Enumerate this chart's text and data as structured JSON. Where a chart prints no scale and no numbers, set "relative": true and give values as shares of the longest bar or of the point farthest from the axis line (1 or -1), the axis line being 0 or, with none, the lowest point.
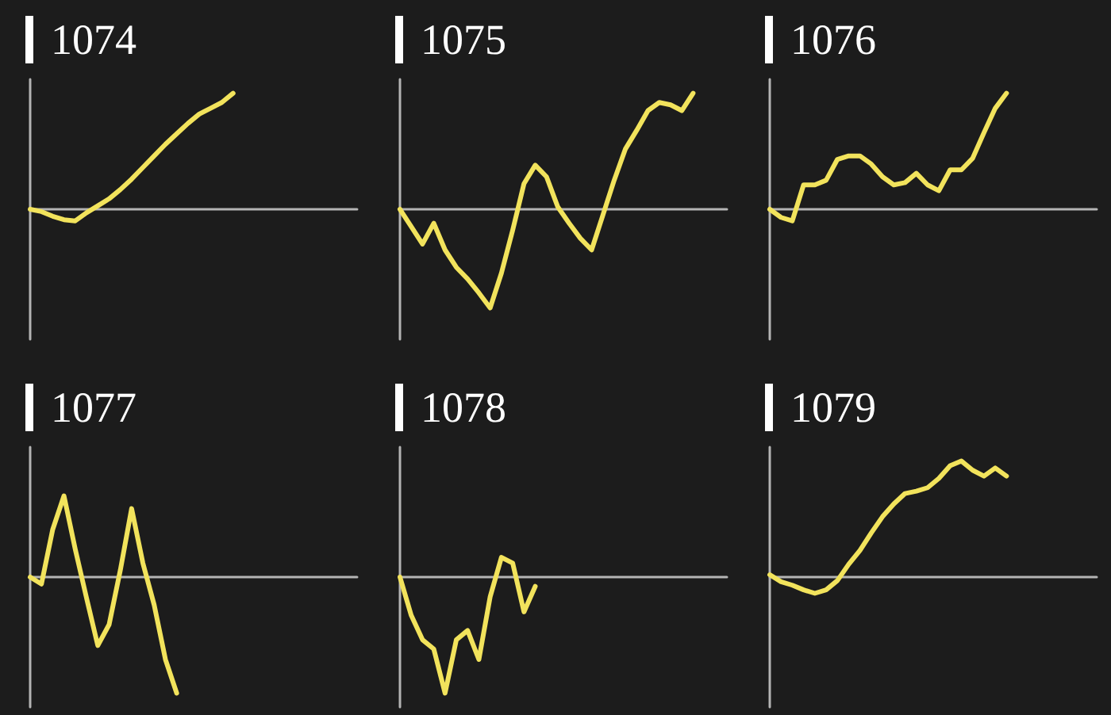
{
  "chart_data": [
    {
      "type": "line",
      "title": "1074",
      "relative": true,
      "tick_labels": false,
      "categories": [
        null,
        null,
        null,
        null,
        null,
        null,
        null,
        null,
        null,
        null,
        null,
        null,
        null,
        null,
        null,
        null,
        null,
        null,
        null,
        null,
        null,
        null,
        null,
        null,
        null,
        null,
        null,
        null,
        null,
        null
      ],
      "series": [
        {
          "color": "#f2e35c",
          "values": [
            0,
            -0.02,
            -0.06,
            -0.09,
            -0.1,
            -0.03,
            0.03,
            0.09,
            0.17,
            0.26,
            0.36,
            0.46,
            0.56,
            0.65,
            0.74,
            0.82,
            0.87,
            0.92,
            1,
            null,
            null,
            null,
            null,
            null,
            null,
            null,
            null,
            null,
            null,
            null
          ]
        }
      ]
    },
    {
      "type": "line",
      "title": "1075",
      "relative": true,
      "tick_labels": false,
      "categories": [
        null,
        null,
        null,
        null,
        null,
        null,
        null,
        null,
        null,
        null,
        null,
        null,
        null,
        null,
        null,
        null,
        null,
        null,
        null,
        null,
        null,
        null,
        null,
        null,
        null,
        null,
        null,
        null,
        null,
        null
      ],
      "series": [
        {
          "color": "#f2e35c",
          "values": [
            0,
            -0.15,
            -0.3,
            -0.12,
            -0.35,
            -0.5,
            -0.6,
            -0.72,
            -0.85,
            -0.55,
            -0.18,
            0.22,
            0.38,
            0.28,
            0.02,
            -0.12,
            -0.25,
            -0.35,
            -0.05,
            0.25,
            0.52,
            0.68,
            0.85,
            0.92,
            0.9,
            0.85,
            1,
            null,
            null,
            null
          ]
        }
      ]
    },
    {
      "type": "line",
      "title": "1076",
      "relative": true,
      "tick_labels": false,
      "categories": [
        null,
        null,
        null,
        null,
        null,
        null,
        null,
        null,
        null,
        null,
        null,
        null,
        null,
        null,
        null,
        null,
        null,
        null,
        null,
        null,
        null,
        null,
        null,
        null,
        null,
        null,
        null,
        null,
        null,
        null
      ],
      "series": [
        {
          "color": "#f2e35c",
          "values": [
            0,
            -0.07,
            -0.1,
            0.21,
            0.21,
            0.25,
            0.43,
            0.46,
            0.46,
            0.39,
            0.28,
            0.21,
            0.23,
            0.31,
            0.21,
            0.16,
            0.34,
            0.34,
            0.44,
            0.66,
            0.87,
            1,
            null,
            null,
            null,
            null,
            null,
            null,
            null,
            null
          ]
        }
      ]
    },
    {
      "type": "line",
      "title": "1077",
      "relative": true,
      "tick_labels": false,
      "categories": [
        null,
        null,
        null,
        null,
        null,
        null,
        null,
        null,
        null,
        null,
        null,
        null,
        null,
        null,
        null,
        null,
        null,
        null,
        null,
        null,
        null,
        null,
        null,
        null,
        null,
        null,
        null,
        null,
        null,
        null
      ],
      "series": [
        {
          "color": "#f2e35c",
          "values": [
            0,
            -0.06,
            0.41,
            0.7,
            0.24,
            -0.18,
            -0.59,
            -0.41,
            0.06,
            0.59,
            0.12,
            -0.24,
            -0.71,
            -1,
            null,
            null,
            null,
            null,
            null,
            null,
            null,
            null,
            null,
            null,
            null,
            null,
            null,
            null,
            null,
            null
          ]
        }
      ]
    },
    {
      "type": "line",
      "title": "1078",
      "relative": true,
      "tick_labels": false,
      "categories": [
        null,
        null,
        null,
        null,
        null,
        null,
        null,
        null,
        null,
        null,
        null,
        null,
        null,
        null,
        null,
        null,
        null,
        null,
        null,
        null,
        null,
        null,
        null,
        null,
        null,
        null,
        null,
        null,
        null,
        null
      ],
      "series": [
        {
          "color": "#f2e35c",
          "values": [
            0,
            -0.33,
            -0.54,
            -0.62,
            -1,
            -0.54,
            -0.46,
            -0.71,
            -0.17,
            0.17,
            0.12,
            -0.3,
            -0.08,
            null,
            null,
            null,
            null,
            null,
            null,
            null,
            null,
            null,
            null,
            null,
            null,
            null,
            null,
            null,
            null,
            null
          ]
        }
      ]
    },
    {
      "type": "line",
      "title": "1079",
      "relative": true,
      "tick_labels": false,
      "categories": [
        null,
        null,
        null,
        null,
        null,
        null,
        null,
        null,
        null,
        null,
        null,
        null,
        null,
        null,
        null,
        null,
        null,
        null,
        null,
        null,
        null,
        null,
        null,
        null,
        null,
        null,
        null,
        null,
        null,
        null
      ],
      "series": [
        {
          "color": "#f2e35c",
          "values": [
            0.02,
            -0.04,
            -0.07,
            -0.11,
            -0.14,
            -0.11,
            -0.03,
            0.11,
            0.23,
            0.38,
            0.52,
            0.63,
            0.72,
            0.74,
            0.77,
            0.85,
            0.96,
            1,
            0.92,
            0.87,
            0.94,
            0.87,
            null,
            null,
            null,
            null,
            null,
            null,
            null,
            null
          ]
        }
      ]
    }
  ]
}
